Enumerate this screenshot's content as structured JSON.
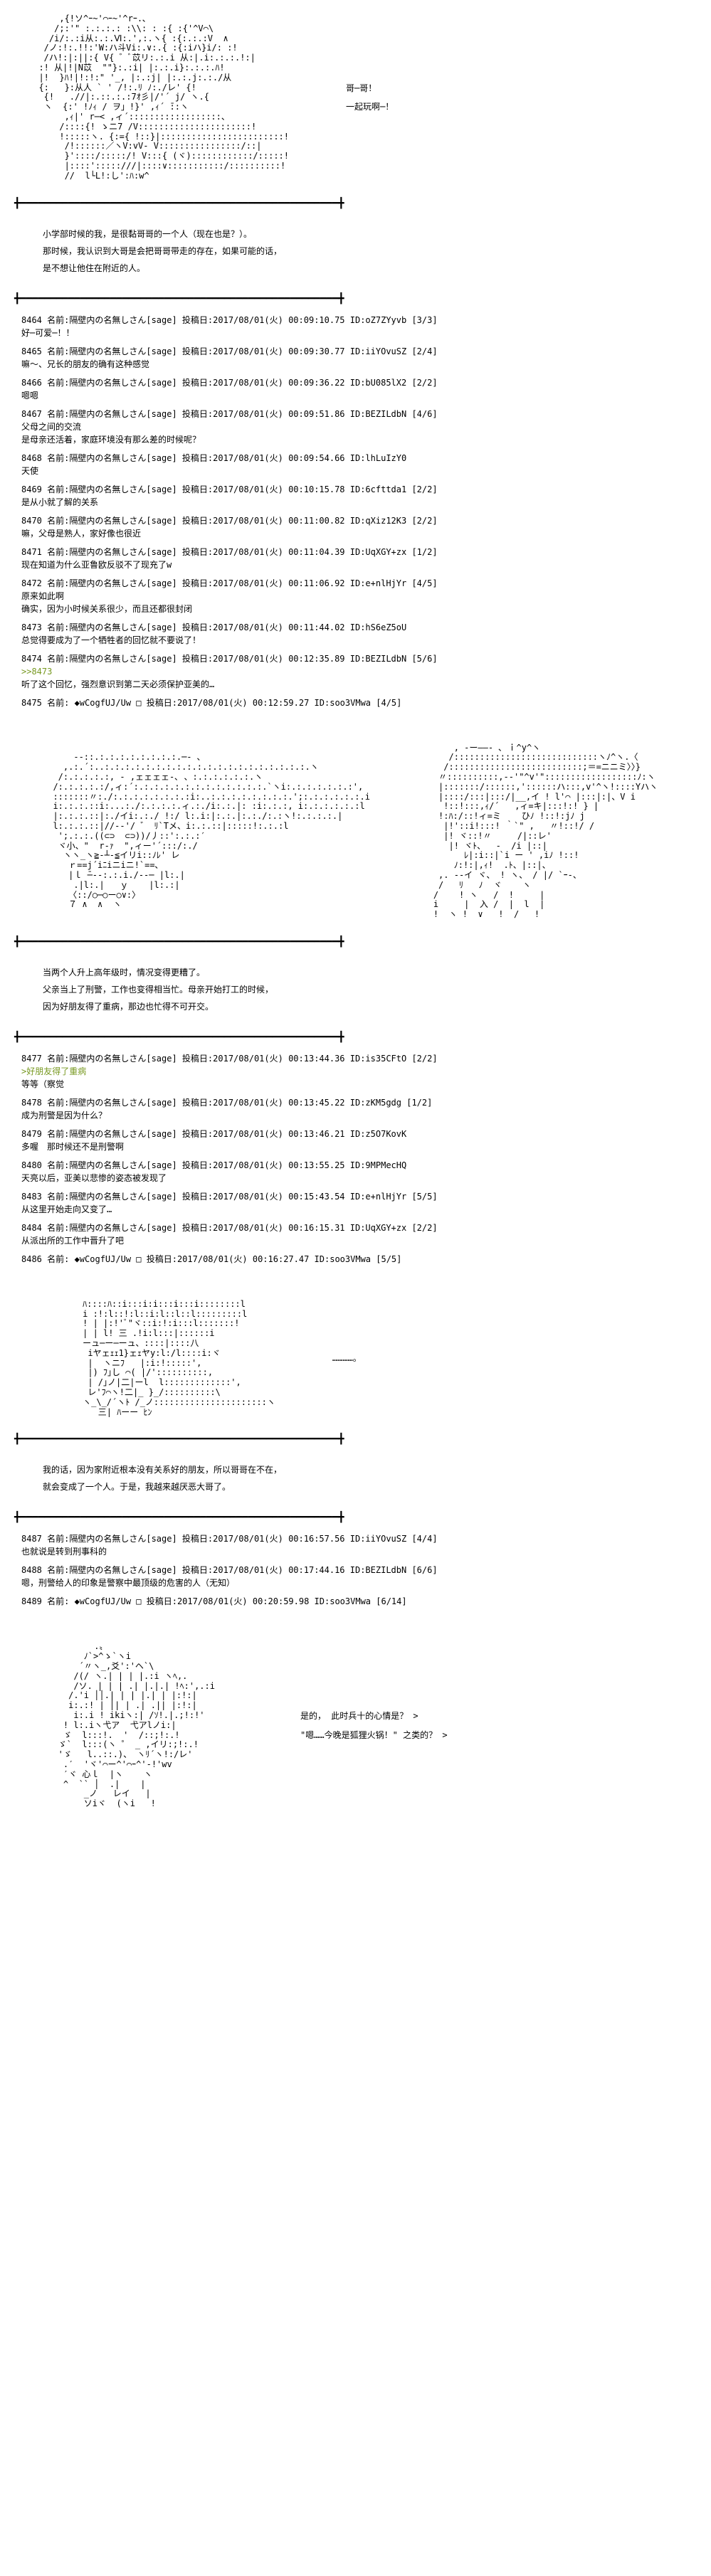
{
  "ascii_art": {
    "art1": "      ,{!ソ^ｰ~'⌒ｰ~'^rｰ.､\n     /;:'\" :.:.:.: :\\\\: : :{ :{'^V⌒\\\n    /i/:.:i从:.:.Ⅵ:.',:.ヽ{ :{:.:.:V  ∧\n   /ノ:!:.!!:'W:ハ斗Vi:.∨:.{ :{:iハ}i/: :!\n   /ハ!:|:||:{ V{ ゛ﾞ苡リ:.:.i 从:|.i:.:.:.!:|\n  :! 从|!|N苡  \"\"}:.:i| |:.:.i}:.:.:.ﾊ!\n  |!  }ﾊ!|!:!:\" '_, |:.:j| |:.:.j:.:./从\n  {:   }:从人 ` ' /!:.ﾘ ﾉ:./レ' {!\n   {!   .//|:.::.:.:7ｵ彡|/'´ j/ ヽ.{\n   ヽ  {:' !ﾉｨ / ヲ」!}' ,ｨ´ ̄::ヽ\n       ,ｨ|' r─< ,ィ´::::::::::::::::::、\n      /::::{! ゝニ7 /V::::::::::::::::::::::!\n      !:::::ヽ. {:={ !::}|::::::::::::::::::::::::!\n       /!::::::／ヽV:vV- V::::::::::::::::/::|\n       }'::::/:::::/! V:::{ (ヾ)::::::::::::/:::::!\n       |::::':::::///|::::∨:::::::::::/::::::::::!\n       //  l└L!:し':ﾊ:w^",
    "speech1_line1": "哥─哥！",
    "speech1_line2": "一起玩啊─！",
    "art2_left": "      -‐::.:.:.:.:.:.:.:.:.─- ､\n    ,.:.´:..:.:.:.:.:.:.:.:.:.:.:.:.:.:.:.:.:.:.:.:.ヽ\n   /:.:.:.:.:, - ,ェェェェ-､ 、:.:.:.:.:.:.ヽ\n  /:.:.:.:.:/,ィ:´:.:.:.:.:.:.:.:.:.:.:.:.:.`ヽi:.:.:.:.:.:.:',\n  :::::::〃:./:.:.:.:.:.:.:.:i:..:.:.:.:.:.:.:.:.';:.:.:.:.:.:.i\n  i:.:.:.::i:...:./:.:.:.:.ィ.:./i:.:.|: :i:.:.:, i:.:.:.:.:.:l\n  |:.:.:.::|:./イi:.:./ !:/ l:.i:|:.:.|:.:./:.:ヽ!:.:.:.:.|\n  l:.:.:.::|//-‐'/ ゛ ﾘ`Tメ、i:.:.::|:::::!:.:.:l\n   ';.:.:.((⊂⊃  ⊂⊃))/丿::':.:.:′\n   ヾ小、\"  r-ｧ  \",ィー'´:::/:./\n    ヽヽ_ヽ≧-┴-≦イリi::ﾉﾚ' レ\n     ｒ==j´iﾆiニiニ!`==､\n     |ｌ ̄─-‐:.:.i./‐-─ |l:.|\n      .|l:.|   ｙ    |l:.:|\n     〈::/○─○ー○∨:〉\n     ７ ∧  ∧  ヽ",
    "art2_right": "        , -ー――- ､ ｉ^y^ヽ\n       /::::::::::::::::::::::::::::ヽﾉ^ヽ.〈\n      /::::::::::::::::::::::::::;＝=ニニミ〉〉}\n     〃::::::::::,-‐'\"^v'\"::::::::::::::::::ﾉ:ヽ\n     |:::::::/::::::,'::::::ハ:::,v'^ヽ!::::Yハヽ\n     |::::/:::|:::/|__,イ ! l'⌒ |:::|:|、V i\n      !::!:::,ｨ/´   ,ィ=キ|:::!:! } |\n     !:ﾊ:/::!ィ=ミ    ひﾉ !::!:jﾉ j\n      |!'::i!:::! ｀`\" ,   〃!::!/ /\n      |! ヾ::!〃     /|::レ'\n       |! ヾﾄ、  -  /i |::|\n          ﾚ|:i::|`i ー ' ,iﾉ !::!\n        ﾉ:!:|,ｨ!  .ﾄ、|::|、\n     ,. -‐イ ヾ、 ! ヽ、 / |/ `ｰ-、\n     /   ﾘ   ﾉ  ヾ    ヽ\n    /    ! ヽ   /  !     |\n    i     |  入 /  |  l  |\n    !  ヽ !  ∨   !  /   !",
    "art3": "     ﾊ::::ﾊ::i:::i:i:::i:::i::::::::l\n     i :!:l::!:l::i:l::l::l:::::::::l\n     ! | |:!'ﾞ\"ヾ::i:!:i:::l:::::::!\n     | | l! 三 .!i:l:::|::::::i\n     ーュ─ー─ーュ、::::|::::八\n      iヤェｪｪ1}ェｪヤy:l:/l::::i:ヾ\n      |  ヽニﾌ   |:i:!:::::',\n      |) ﾌ｣し ⌒( |/'::::::::::,\n      | /｣ノ|二|ーl  l:::::::::::::',\n      レ'ﾌ⌒ヽ!二|_ }_/::::::::::\\ \n     ヽ_\\_/´ヽﾄ /_ノ::::::::::::::::::::::ヽ\n        三| ﾊーー ﾋﾝ",
    "speech3": "…………。",
    "art4": "          .〟\n        ﾉ`>^ゝ`ヽi\n       ´〃ヽ_,爻':'ヘ`\\\n      /(/ ヽ.| | | |.:i ヽﾍ,.\n      /ソ. | | | .| |.|.| !ﾍ:',.:i\n     /.'i ││.| | | |.| | |:!:|\n     i:.:! | │| | .| .|| |:!:|\n      i:.i ! ikiヽ:| /ｿ!.|.;!:!'\n    ! l:.iヽ弋ア  弋アlノi:|\n    ゞ  l:::!.  '  /::;!:.!\n   ゞ`  l:::(ヽ ゜ _ ,イリ:;!:.!\n   'ゞ   l..::.)、 ヽﾘ´ヽ!:/レ'\n    .′  'ヾ'⌒ー^'⌒ｰ^'‐!'wv\n    ′ヾ 心ｌ  |ヽ    ヽ\n    ^  `` │  .|    |\n        _ノ   レイ   |\n        ソiヾ  (ヽi   !"
  },
  "narration1": {
    "line1": "小学部时候的我，是很黏哥哥的一个人（现在也是？）。",
    "line2": "那时候，我认识到大哥是会把哥哥带走的存在，如果可能的话，",
    "line3": "是不想让他住在附近的人。"
  },
  "narration2": {
    "line1": "当两个人升上高年级时，情况变得更糟了。",
    "line2": "父亲当上了刑警，工作也变得相当忙。母亲开始打工的时候，",
    "line3": "因为好朋友得了重病，那边也忙得不可开交。"
  },
  "narration3": {
    "line1": "我的话，因为家附近根本没有关系好的朋友，所以哥哥在不在，",
    "line2": "就会变成了一个人。于是，我越来越厌恶大哥了。"
  },
  "posts1": [
    {
      "no": "8464",
      "header": "名前:隔壁内の名無しさん[sage] 投稿日:2017/08/01(火) 00:09:10.75 ID:oZ7ZYyvb [3/3]",
      "body": "好─可爱─！！"
    },
    {
      "no": "8465",
      "header": "名前:隔壁内の名無しさん[sage] 投稿日:2017/08/01(火) 00:09:30.77 ID:iiYOvuSZ [2/4]",
      "body": "嘛～、兄长的朋友的确有这种感觉"
    },
    {
      "no": "8466",
      "header": "名前:隔壁内の名無しさん[sage] 投稿日:2017/08/01(火) 00:09:36.22 ID:bU085lX2 [2/2]",
      "body": "嗯嗯"
    },
    {
      "no": "8467",
      "header": "名前:隔壁内の名無しさん[sage] 投稿日:2017/08/01(火) 00:09:51.86 ID:BEZILdbN [4/6]",
      "body": "父母之间的交流\n是母亲还活着，家庭环境没有那么差的时候呢？"
    },
    {
      "no": "8468",
      "header": "名前:隔壁内の名無しさん[sage] 投稿日:2017/08/01(火) 00:09:54.66 ID:lhLuIzY0",
      "body": "天使"
    },
    {
      "no": "8469",
      "header": "名前:隔壁内の名無しさん[sage] 投稿日:2017/08/01(火) 00:10:15.78 ID:6cfttda1 [2/2]",
      "body": "是从小就了解的关系"
    },
    {
      "no": "8470",
      "header": "名前:隔壁内の名無しさん[sage] 投稿日:2017/08/01(火) 00:11:00.82 ID:qXiz12K3 [2/2]",
      "body": "嘛，父母是熟人，家好像也很近"
    },
    {
      "no": "8471",
      "header": "名前:隔壁内の名無しさん[sage] 投稿日:2017/08/01(火) 00:11:04.39 ID:UqXGY+zx [1/2]",
      "body": "现在知道为什么亚鲁欧反驳不了现充了w"
    },
    {
      "no": "8472",
      "header": "名前:隔壁内の名無しさん[sage] 投稿日:2017/08/01(火) 00:11:06.92 ID:e+nlHjYr [4/5]",
      "body": "原来如此啊\n确实，因为小时候关系很少，而且还都很封闭"
    },
    {
      "no": "8473",
      "header": "名前:隔壁内の名無しさん[sage] 投稿日:2017/08/01(火) 00:11:44.02 ID:hS6eZ5oU",
      "body": "总觉得要成为了一个牺牲者的回忆就不要说了！"
    },
    {
      "no": "8474",
      "header": "名前:隔壁内の名無しさん[sage] 投稿日:2017/08/01(火) 00:12:35.89 ID:BEZILdbN [5/6]",
      "body": ">>8473\n听了这个回忆，强烈意识到第二天必须保护亚美的…"
    },
    {
      "no": "8475",
      "header": "名前: ◆wCogfUJ/Uw □ 投稿日:2017/08/01(火) 00:12:59.27 ID:soo3VMwa [4/5]",
      "body": ""
    }
  ],
  "posts2": [
    {
      "no": "8477",
      "header": "名前:隔壁内の名無しさん[sage] 投稿日:2017/08/01(火) 00:13:44.36 ID:is35CFtO [2/2]",
      "body": ">好朋友得了重病\n等等（察觉"
    },
    {
      "no": "8478",
      "header": "名前:隔壁内の名無しさん[sage] 投稿日:2017/08/01(火) 00:13:45.22 ID:zKM5gdg [1/2]",
      "body": "成为刑警是因为什么？"
    },
    {
      "no": "8479",
      "header": "名前:隔壁内の名無しさん[sage] 投稿日:2017/08/01(火) 00:13:46.21 ID:z5O7KovK",
      "body": "多喔　那时候还不是刑警啊"
    },
    {
      "no": "8480",
      "header": "名前:隔壁内の名無しさん[sage] 投稿日:2017/08/01(火) 00:13:55.25 ID:9MPMecHQ",
      "body": "天亮以后，亚美以悲惨的姿态被发现了"
    },
    {
      "no": "8483",
      "header": "名前:隔壁内の名無しさん[sage] 投稿日:2017/08/01(火) 00:15:43.54 ID:e+nlHjYr [5/5]",
      "body": "从这里开始走向又变了…"
    },
    {
      "no": "8484",
      "header": "名前:隔壁内の名無しさん[sage] 投稿日:2017/08/01(火) 00:16:15.31 ID:UqXGY+zx [2/2]",
      "body": "从派出所的工作中晋升了吧"
    },
    {
      "no": "8486",
      "header": "名前: ◆wCogfUJ/Uw □ 投稿日:2017/08/01(火) 00:16:27.47 ID:soo3VMwa [5/5]",
      "body": ""
    }
  ],
  "posts3": [
    {
      "no": "8487",
      "header": "名前:隔壁内の名無しさん[sage] 投稿日:2017/08/01(火) 00:16:57.56 ID:iiYOvuSZ [4/4]",
      "body": "也就说是转到刑事科的"
    },
    {
      "no": "8488",
      "header": "名前:隔壁内の名無しさん[sage] 投稿日:2017/08/01(火) 00:17:44.16 ID:BEZILdbN [6/6]",
      "body": "嗯，刑警给人的印象是警察中最顶级的危害的人（无知）"
    },
    {
      "no": "8489",
      "header": "名前: ◆wCogfUJ/Uw □ 投稿日:2017/08/01(火) 00:20:59.98 ID:soo3VMwa [6/14]",
      "body": ""
    }
  ],
  "speech4": {
    "line1": "是的， 此时兵十的心情是？ >",
    "line2": "\"嗯……今晚是狐狸火锅！\" 之类的？ >"
  },
  "divider_line": "╋━━━━━━━━━━━━━━━━━━━━━━━━━━━━━━━━━━━━━━━━━━━━━━━━━━━━━╋"
}
